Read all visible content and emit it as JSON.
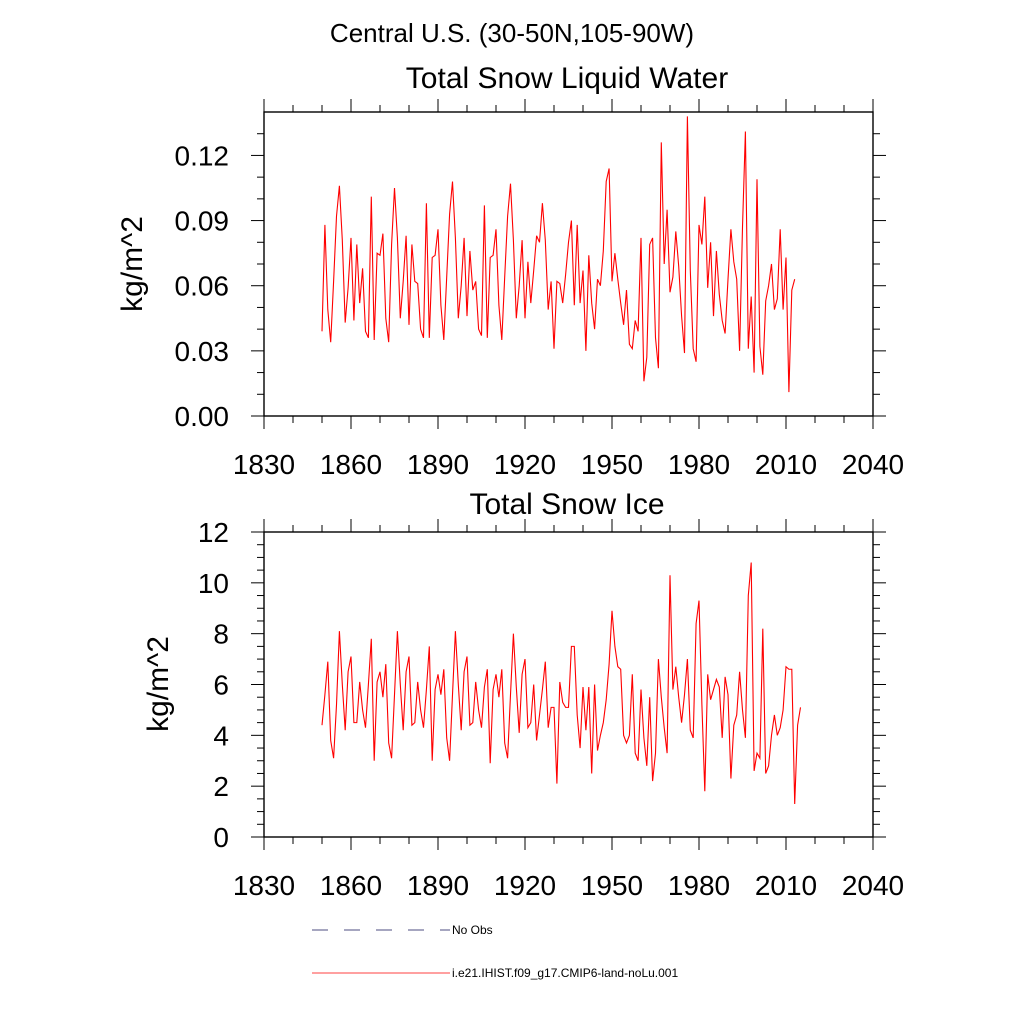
{
  "figure": {
    "suptitle": "Central U.S. (30-50N,105-90W)",
    "legend": [
      {
        "label": "No Obs",
        "color": "#4d4d80",
        "style": "dashed"
      },
      {
        "label": "i.e21.IHIST.f09_g17.CMIP6-land-noLu.001",
        "color": "#ff0000",
        "style": "solid"
      }
    ]
  },
  "chart_data": [
    {
      "type": "line",
      "title": "Total Snow Liquid Water",
      "xlabel": "",
      "ylabel": "kg/m^2",
      "xlim": [
        1830,
        2040
      ],
      "ylim": [
        0.0,
        0.14
      ],
      "xticks": [
        1830,
        1860,
        1890,
        1920,
        1950,
        1980,
        2010,
        2040
      ],
      "xtick_labels": [
        "1830",
        "1860",
        "1890",
        "1920",
        "1950",
        "1980",
        "2010",
        "2040"
      ],
      "yticks": [
        0.0,
        0.03,
        0.06,
        0.09,
        0.12
      ],
      "ytick_labels": [
        "0.00",
        "0.03",
        "0.06",
        "0.09",
        "0.12"
      ],
      "grid": false,
      "series": [
        {
          "name": "i.e21.IHIST.f09_g17.CMIP6-land-noLu.001",
          "color": "#ff0000",
          "x_start": 1850,
          "x_step": 1,
          "values": [
            0.039,
            0.088,
            0.049,
            0.034,
            0.062,
            0.092,
            0.106,
            0.081,
            0.043,
            0.059,
            0.082,
            0.044,
            0.079,
            0.052,
            0.068,
            0.039,
            0.036,
            0.101,
            0.035,
            0.075,
            0.074,
            0.084,
            0.045,
            0.034,
            0.079,
            0.105,
            0.082,
            0.045,
            0.062,
            0.083,
            0.042,
            0.079,
            0.062,
            0.061,
            0.04,
            0.036,
            0.098,
            0.036,
            0.073,
            0.074,
            0.086,
            0.051,
            0.035,
            0.064,
            0.093,
            0.108,
            0.082,
            0.045,
            0.06,
            0.082,
            0.046,
            0.076,
            0.058,
            0.062,
            0.04,
            0.037,
            0.097,
            0.036,
            0.073,
            0.074,
            0.086,
            0.051,
            0.035,
            0.064,
            0.092,
            0.107,
            0.081,
            0.045,
            0.06,
            0.081,
            0.045,
            0.071,
            0.052,
            0.067,
            0.083,
            0.08,
            0.098,
            0.081,
            0.049,
            0.062,
            0.031,
            0.062,
            0.061,
            0.052,
            0.065,
            0.08,
            0.09,
            0.051,
            0.088,
            0.052,
            0.067,
            0.03,
            0.074,
            0.052,
            0.04,
            0.063,
            0.06,
            0.076,
            0.108,
            0.114,
            0.062,
            0.075,
            0.063,
            0.052,
            0.042,
            0.058,
            0.033,
            0.031,
            0.044,
            0.039,
            0.082,
            0.016,
            0.027,
            0.079,
            0.082,
            0.036,
            0.022,
            0.126,
            0.07,
            0.095,
            0.057,
            0.064,
            0.085,
            0.069,
            0.046,
            0.029,
            0.138,
            0.067,
            0.031,
            0.025,
            0.088,
            0.079,
            0.101,
            0.059,
            0.08,
            0.046,
            0.076,
            0.056,
            0.044,
            0.038,
            0.063,
            0.086,
            0.071,
            0.063,
            0.03,
            0.087,
            0.131,
            0.031,
            0.055,
            0.02,
            0.109,
            0.032,
            0.019,
            0.053,
            0.06,
            0.07,
            0.049,
            0.054,
            0.086,
            0.049,
            0.073,
            0.011,
            0.058,
            0.063
          ]
        }
      ]
    },
    {
      "type": "line",
      "title": "Total Snow Ice",
      "xlabel": "",
      "ylabel": "kg/m^2",
      "xlim": [
        1830,
        2040
      ],
      "ylim": [
        0,
        12
      ],
      "xticks": [
        1830,
        1860,
        1890,
        1920,
        1950,
        1980,
        2010,
        2040
      ],
      "xtick_labels": [
        "1830",
        "1860",
        "1890",
        "1920",
        "1950",
        "1980",
        "2010",
        "2040"
      ],
      "yticks": [
        0,
        2,
        4,
        6,
        8,
        10,
        12
      ],
      "ytick_labels": [
        "0",
        "2",
        "4",
        "6",
        "8",
        "10",
        "12"
      ],
      "grid": false,
      "series": [
        {
          "name": "i.e21.IHIST.f09_g17.CMIP6-land-noLu.001",
          "color": "#ff0000",
          "x_start": 1850,
          "x_step": 1,
          "values": [
            4.4,
            5.6,
            6.9,
            3.8,
            3.1,
            5.2,
            8.1,
            6.0,
            4.2,
            6.5,
            7.1,
            4.5,
            4.5,
            6.1,
            5.0,
            4.3,
            6.0,
            7.8,
            3.0,
            6.1,
            6.5,
            5.5,
            6.8,
            3.7,
            3.1,
            5.6,
            8.1,
            6.0,
            4.2,
            6.5,
            7.1,
            4.4,
            4.5,
            6.1,
            5.0,
            4.3,
            5.8,
            7.5,
            3.0,
            5.8,
            6.4,
            5.6,
            6.6,
            3.9,
            3.0,
            5.6,
            8.1,
            6.0,
            4.2,
            6.5,
            7.1,
            4.4,
            4.5,
            6.1,
            5.0,
            4.3,
            5.9,
            6.6,
            2.9,
            5.8,
            6.4,
            5.5,
            6.6,
            3.7,
            3.1,
            5.6,
            8.0,
            5.9,
            4.1,
            6.4,
            7.0,
            4.3,
            4.5,
            6.0,
            3.8,
            4.8,
            5.8,
            6.9,
            4.3,
            5.1,
            5.1,
            2.1,
            6.1,
            5.3,
            5.1,
            5.1,
            7.5,
            7.5,
            4.8,
            3.5,
            5.9,
            4.2,
            5.9,
            2.5,
            6.0,
            3.4,
            4.0,
            4.5,
            5.4,
            6.8,
            8.9,
            7.5,
            6.7,
            6.6,
            4.0,
            3.7,
            4.0,
            6.4,
            3.3,
            3.0,
            5.8,
            3.9,
            2.8,
            5.5,
            2.2,
            3.3,
            7.0,
            5.5,
            4.3,
            3.3,
            10.3,
            5.8,
            6.7,
            5.5,
            4.5,
            5.6,
            7.0,
            4.2,
            3.9,
            8.4,
            9.3,
            5.2,
            1.8,
            6.4,
            5.4,
            5.8,
            6.2,
            5.9,
            3.9,
            6.3,
            5.6,
            2.3,
            4.4,
            4.8,
            6.5,
            5.0,
            3.9,
            9.5,
            10.8,
            2.6,
            3.3,
            3.1,
            8.2,
            2.5,
            2.8,
            4.0,
            4.8,
            4.0,
            4.3,
            5.0,
            6.7,
            6.6,
            6.6,
            1.3,
            4.4,
            5.1
          ]
        }
      ]
    }
  ]
}
